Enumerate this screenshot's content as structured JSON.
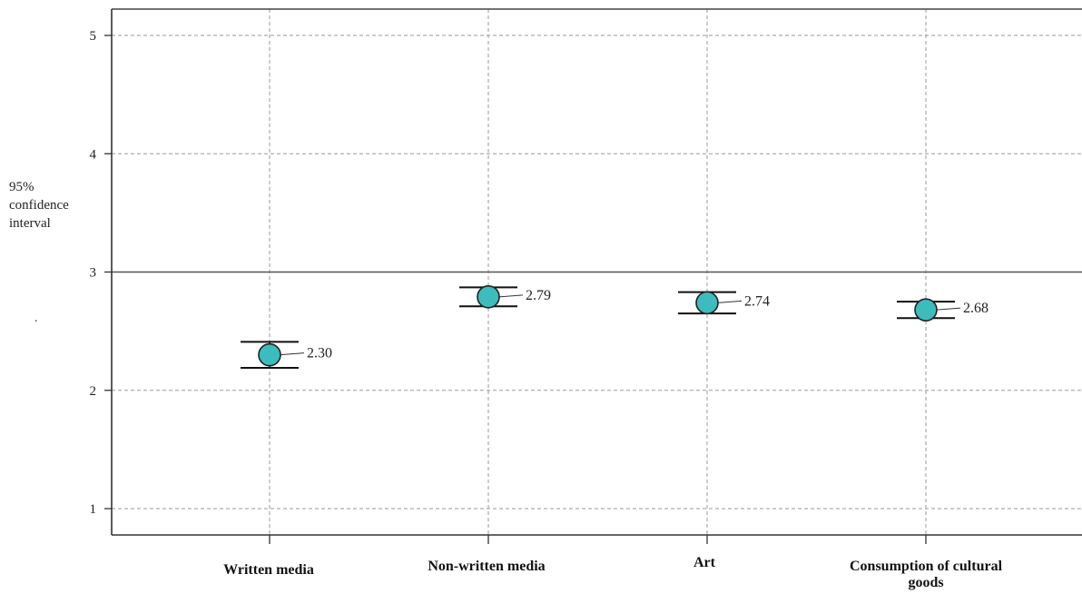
{
  "chart_data": {
    "type": "scatter",
    "title": "",
    "ylabel_lines": [
      "95%",
      "confidence",
      "interval"
    ],
    "stray_mark": ".",
    "ylim": [
      0.8,
      5.2
    ],
    "yticks": [
      "1",
      "2",
      "3",
      "4",
      "5"
    ],
    "reference_line": 3,
    "grid": true,
    "categories": [
      "Written media",
      "Non-written media",
      "Art",
      "Consumption of cultural goods"
    ],
    "points": [
      {
        "category": "Written media",
        "mean": 2.3,
        "lower": 2.19,
        "upper": 2.41,
        "label": "2.30"
      },
      {
        "category": "Non-written media",
        "mean": 2.79,
        "lower": 2.71,
        "upper": 2.87,
        "label": "2.79"
      },
      {
        "category": "Art",
        "mean": 2.74,
        "lower": 2.65,
        "upper": 2.83,
        "label": "2.74"
      },
      {
        "category": "Consumption of cultural goods",
        "mean": 2.68,
        "lower": 2.61,
        "upper": 2.75,
        "label": "2.68"
      }
    ],
    "marker_color": "#3cbcbc"
  }
}
